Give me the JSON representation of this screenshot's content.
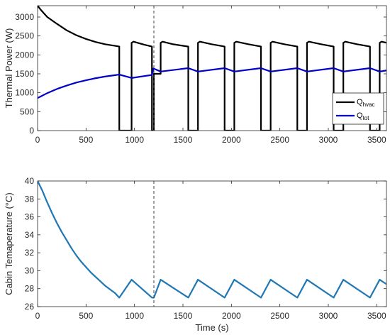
{
  "colors": {
    "q_hvac": "#000000",
    "q_tot": "#0000c8",
    "cabin_temp": "#1f77b4",
    "axis": "#262626",
    "dashed_marker": "#404040"
  },
  "chart_data": [
    {
      "type": "line",
      "ylabel": "Thermal Power (W)",
      "xlabel": "",
      "xlim": [
        0,
        3600
      ],
      "ylim": [
        0,
        3300
      ],
      "xticks": [
        "0",
        "500",
        "1000",
        "1500",
        "2000",
        "2500",
        "3000",
        "3500"
      ],
      "xtick_values": [
        0,
        500,
        1000,
        1500,
        2000,
        2500,
        3000,
        3500
      ],
      "yticks": [
        "0",
        "500",
        "1000",
        "1500",
        "2000",
        "2500",
        "3000"
      ],
      "ytick_values": [
        0,
        500,
        1000,
        1500,
        2000,
        2500,
        3000
      ],
      "vertical_marker_x": 1200,
      "legend": {
        "placement": "bottom-right",
        "entries": [
          {
            "main": "Q",
            "sub": "hvac"
          },
          {
            "main": "Q",
            "sub": "tot"
          }
        ]
      },
      "series": [
        {
          "x": [
            0,
            30,
            100,
            200,
            300,
            400,
            500,
            600,
            700,
            800,
            843,
            843,
            970,
            970,
            990,
            1100,
            1180,
            1180,
            1200,
            1200,
            1270,
            1270,
            1290,
            1400,
            1555,
            1555,
            1655,
            1655,
            1675,
            1800,
            1930,
            1930,
            2030,
            2030,
            2050,
            2180,
            2305,
            2305,
            2405,
            2405,
            2425,
            2550,
            2680,
            2680,
            2780,
            2780,
            2800,
            2930,
            3055,
            3055,
            3155,
            3155,
            3175,
            3300,
            3430,
            3430,
            3530,
            3530,
            3550,
            3600
          ],
          "y": [
            3300,
            3200,
            3000,
            2820,
            2650,
            2520,
            2420,
            2340,
            2280,
            2240,
            2220,
            0,
            0,
            2320,
            2350,
            2270,
            2220,
            0,
            0,
            1500,
            1500,
            2320,
            2350,
            2280,
            2220,
            0,
            0,
            2320,
            2350,
            2280,
            2220,
            0,
            0,
            2320,
            2350,
            2280,
            2220,
            0,
            0,
            2320,
            2350,
            2280,
            2220,
            0,
            0,
            2320,
            2350,
            2280,
            2220,
            0,
            0,
            2320,
            2350,
            2280,
            2220,
            0,
            0,
            2320,
            2350,
            2320
          ]
        },
        {
          "x": [
            0,
            100,
            200,
            300,
            400,
            500,
            600,
            700,
            800,
            843,
            970,
            1100,
            1180,
            1195,
            1270,
            1555,
            1655,
            1930,
            2030,
            2305,
            2405,
            2680,
            2780,
            3055,
            3155,
            3430,
            3530,
            3600
          ],
          "y": [
            860,
            990,
            1100,
            1190,
            1270,
            1330,
            1385,
            1430,
            1465,
            1480,
            1390,
            1440,
            1470,
            1640,
            1560,
            1650,
            1560,
            1650,
            1560,
            1650,
            1560,
            1650,
            1560,
            1650,
            1560,
            1650,
            1560,
            1590
          ]
        }
      ]
    },
    {
      "type": "line",
      "ylabel": "Cabin Temaperature (°C)",
      "xlabel": "Time (s)",
      "xlim": [
        0,
        3600
      ],
      "ylim": [
        26,
        40
      ],
      "xticks": [
        "0",
        "500",
        "1000",
        "1500",
        "2000",
        "2500",
        "3000",
        "3500"
      ],
      "xtick_values": [
        0,
        500,
        1000,
        1500,
        2000,
        2500,
        3000,
        3500
      ],
      "yticks": [
        "26",
        "28",
        "30",
        "32",
        "34",
        "36",
        "38",
        "40"
      ],
      "ytick_values": [
        26,
        28,
        30,
        32,
        34,
        36,
        38,
        40
      ],
      "vertical_marker_x": 1200,
      "series": [
        {
          "x": [
            0,
            50,
            100,
            150,
            200,
            250,
            300,
            350,
            400,
            450,
            500,
            550,
            600,
            650,
            700,
            750,
            800,
            843,
            970,
            1180,
            1200,
            1270,
            1555,
            1655,
            1930,
            2030,
            2305,
            2405,
            2680,
            2780,
            3055,
            3155,
            3430,
            3530,
            3600
          ],
          "y": [
            40,
            38.9,
            37.6,
            36.4,
            35.3,
            34.3,
            33.4,
            32.5,
            31.7,
            31.0,
            30.4,
            29.8,
            29.3,
            28.8,
            28.3,
            27.9,
            27.5,
            27.0,
            29.0,
            27.0,
            27.0,
            29.0,
            27.0,
            29.0,
            27.0,
            29.0,
            27.0,
            29.0,
            27.0,
            29.0,
            27.0,
            29.0,
            27.0,
            29.0,
            28.5
          ]
        }
      ]
    }
  ]
}
